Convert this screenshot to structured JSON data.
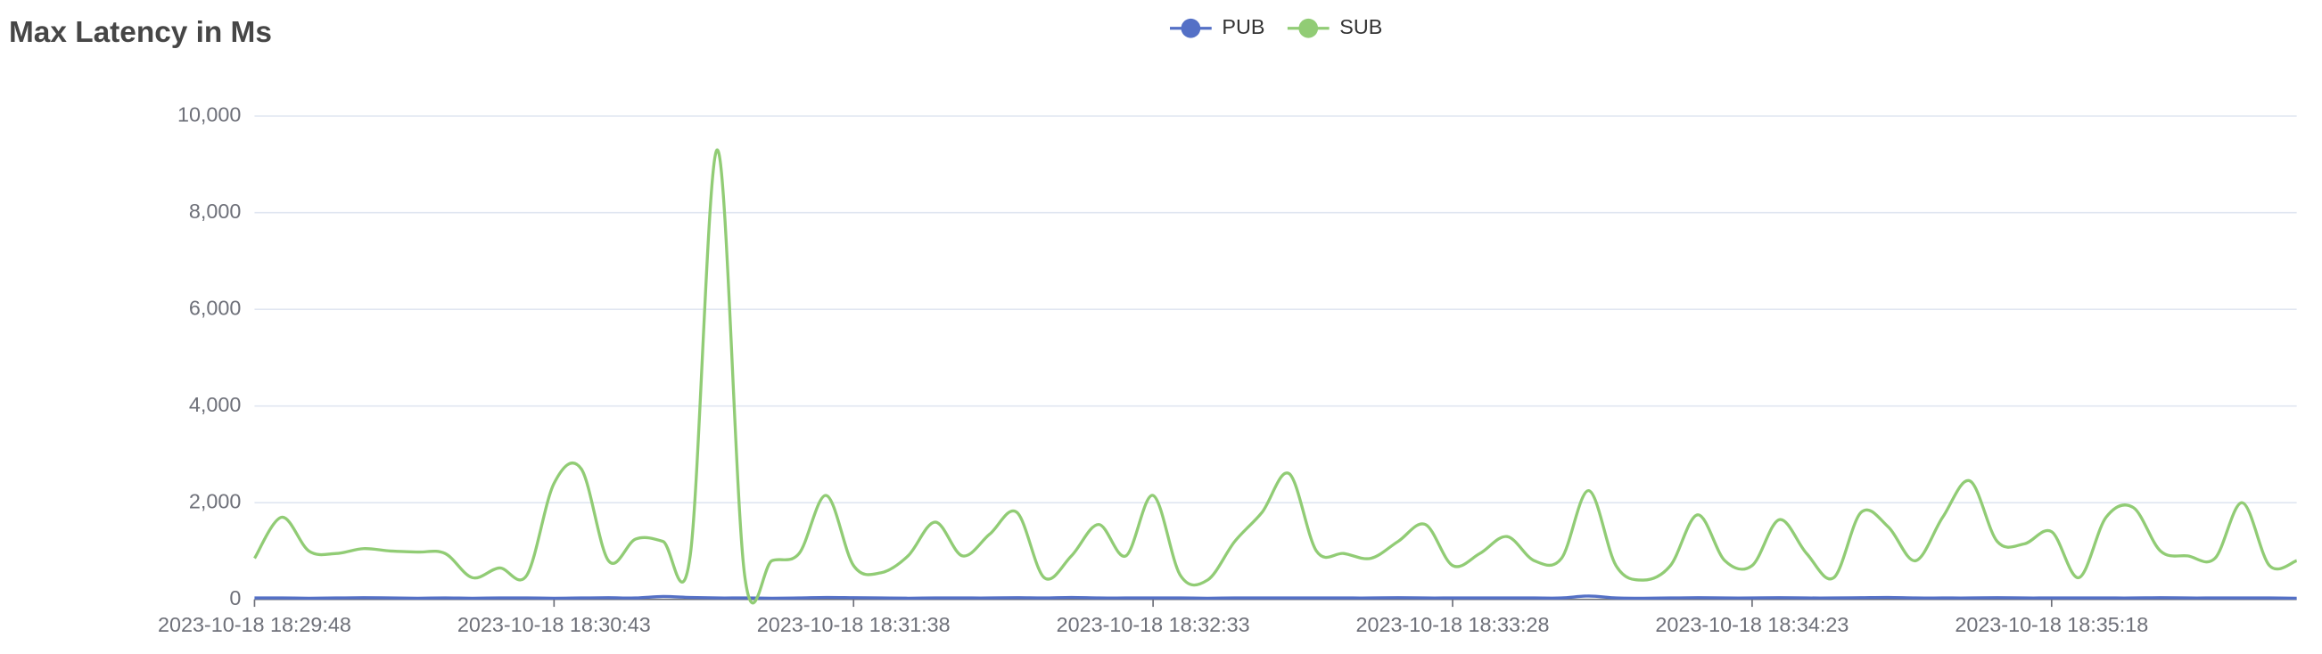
{
  "chart_data": {
    "type": "line",
    "title": "Max Latency in Ms",
    "categories": [
      "2023-10-18 18:29:48",
      null,
      null,
      null,
      null,
      null,
      null,
      null,
      null,
      null,
      null,
      "2023-10-18 18:30:43",
      null,
      null,
      null,
      null,
      null,
      null,
      null,
      null,
      null,
      null,
      "2023-10-18 18:31:38",
      null,
      null,
      null,
      null,
      null,
      null,
      null,
      null,
      null,
      null,
      "2023-10-18 18:32:33",
      null,
      null,
      null,
      null,
      null,
      null,
      null,
      null,
      null,
      null,
      "2023-10-18 18:33:28",
      null,
      null,
      null,
      null,
      null,
      null,
      null,
      null,
      null,
      null,
      "2023-10-18 18:34:23",
      null,
      null,
      null,
      null,
      null,
      null,
      null,
      null,
      null,
      null,
      "2023-10-18 18:35:18",
      null,
      null,
      null,
      null,
      null,
      null,
      null,
      null,
      null
    ],
    "series": [
      {
        "name": "PUB",
        "color": "#5470c6",
        "values": [
          30,
          30,
          25,
          30,
          35,
          30,
          25,
          30,
          25,
          30,
          30,
          25,
          30,
          35,
          30,
          60,
          40,
          30,
          30,
          25,
          30,
          40,
          35,
          30,
          25,
          30,
          30,
          30,
          35,
          30,
          40,
          30,
          30,
          30,
          30,
          25,
          30,
          30,
          30,
          30,
          30,
          30,
          35,
          30,
          30,
          30,
          30,
          30,
          30,
          70,
          30,
          25,
          30,
          35,
          30,
          30,
          35,
          30,
          30,
          35,
          40,
          30,
          30,
          30,
          35,
          30,
          30,
          30,
          30,
          30,
          35,
          30,
          30,
          30,
          30,
          25
        ]
      },
      {
        "name": "SUB",
        "color": "#91cc75",
        "values": [
          850,
          1700,
          1000,
          950,
          1050,
          1000,
          980,
          950,
          450,
          650,
          500,
          2400,
          2700,
          800,
          1250,
          1200,
          900,
          9300,
          500,
          800,
          950,
          2150,
          700,
          550,
          900,
          1600,
          900,
          1350,
          1800,
          450,
          900,
          1550,
          900,
          2150,
          500,
          400,
          1200,
          1800,
          2600,
          1000,
          950,
          850,
          1200,
          1550,
          700,
          950,
          1300,
          800,
          850,
          2250,
          700,
          400,
          700,
          1750,
          800,
          700,
          1650,
          950,
          450,
          1800,
          1500,
          800,
          1700,
          2450,
          1200,
          1150,
          1400,
          450,
          1700,
          1900,
          1000,
          900,
          850,
          2000,
          700,
          800
        ]
      }
    ],
    "ylim": [
      0,
      10000
    ],
    "yticks": [
      0,
      {
        "value": 2000,
        "label": "2,000"
      },
      {
        "value": 4000,
        "label": "4,000"
      },
      {
        "value": 6000,
        "label": "6,000"
      },
      {
        "value": 8000,
        "label": "8,000"
      },
      {
        "value": 10000,
        "label": "10,000"
      }
    ],
    "grid": true,
    "legend": "top",
    "smooth": true
  }
}
